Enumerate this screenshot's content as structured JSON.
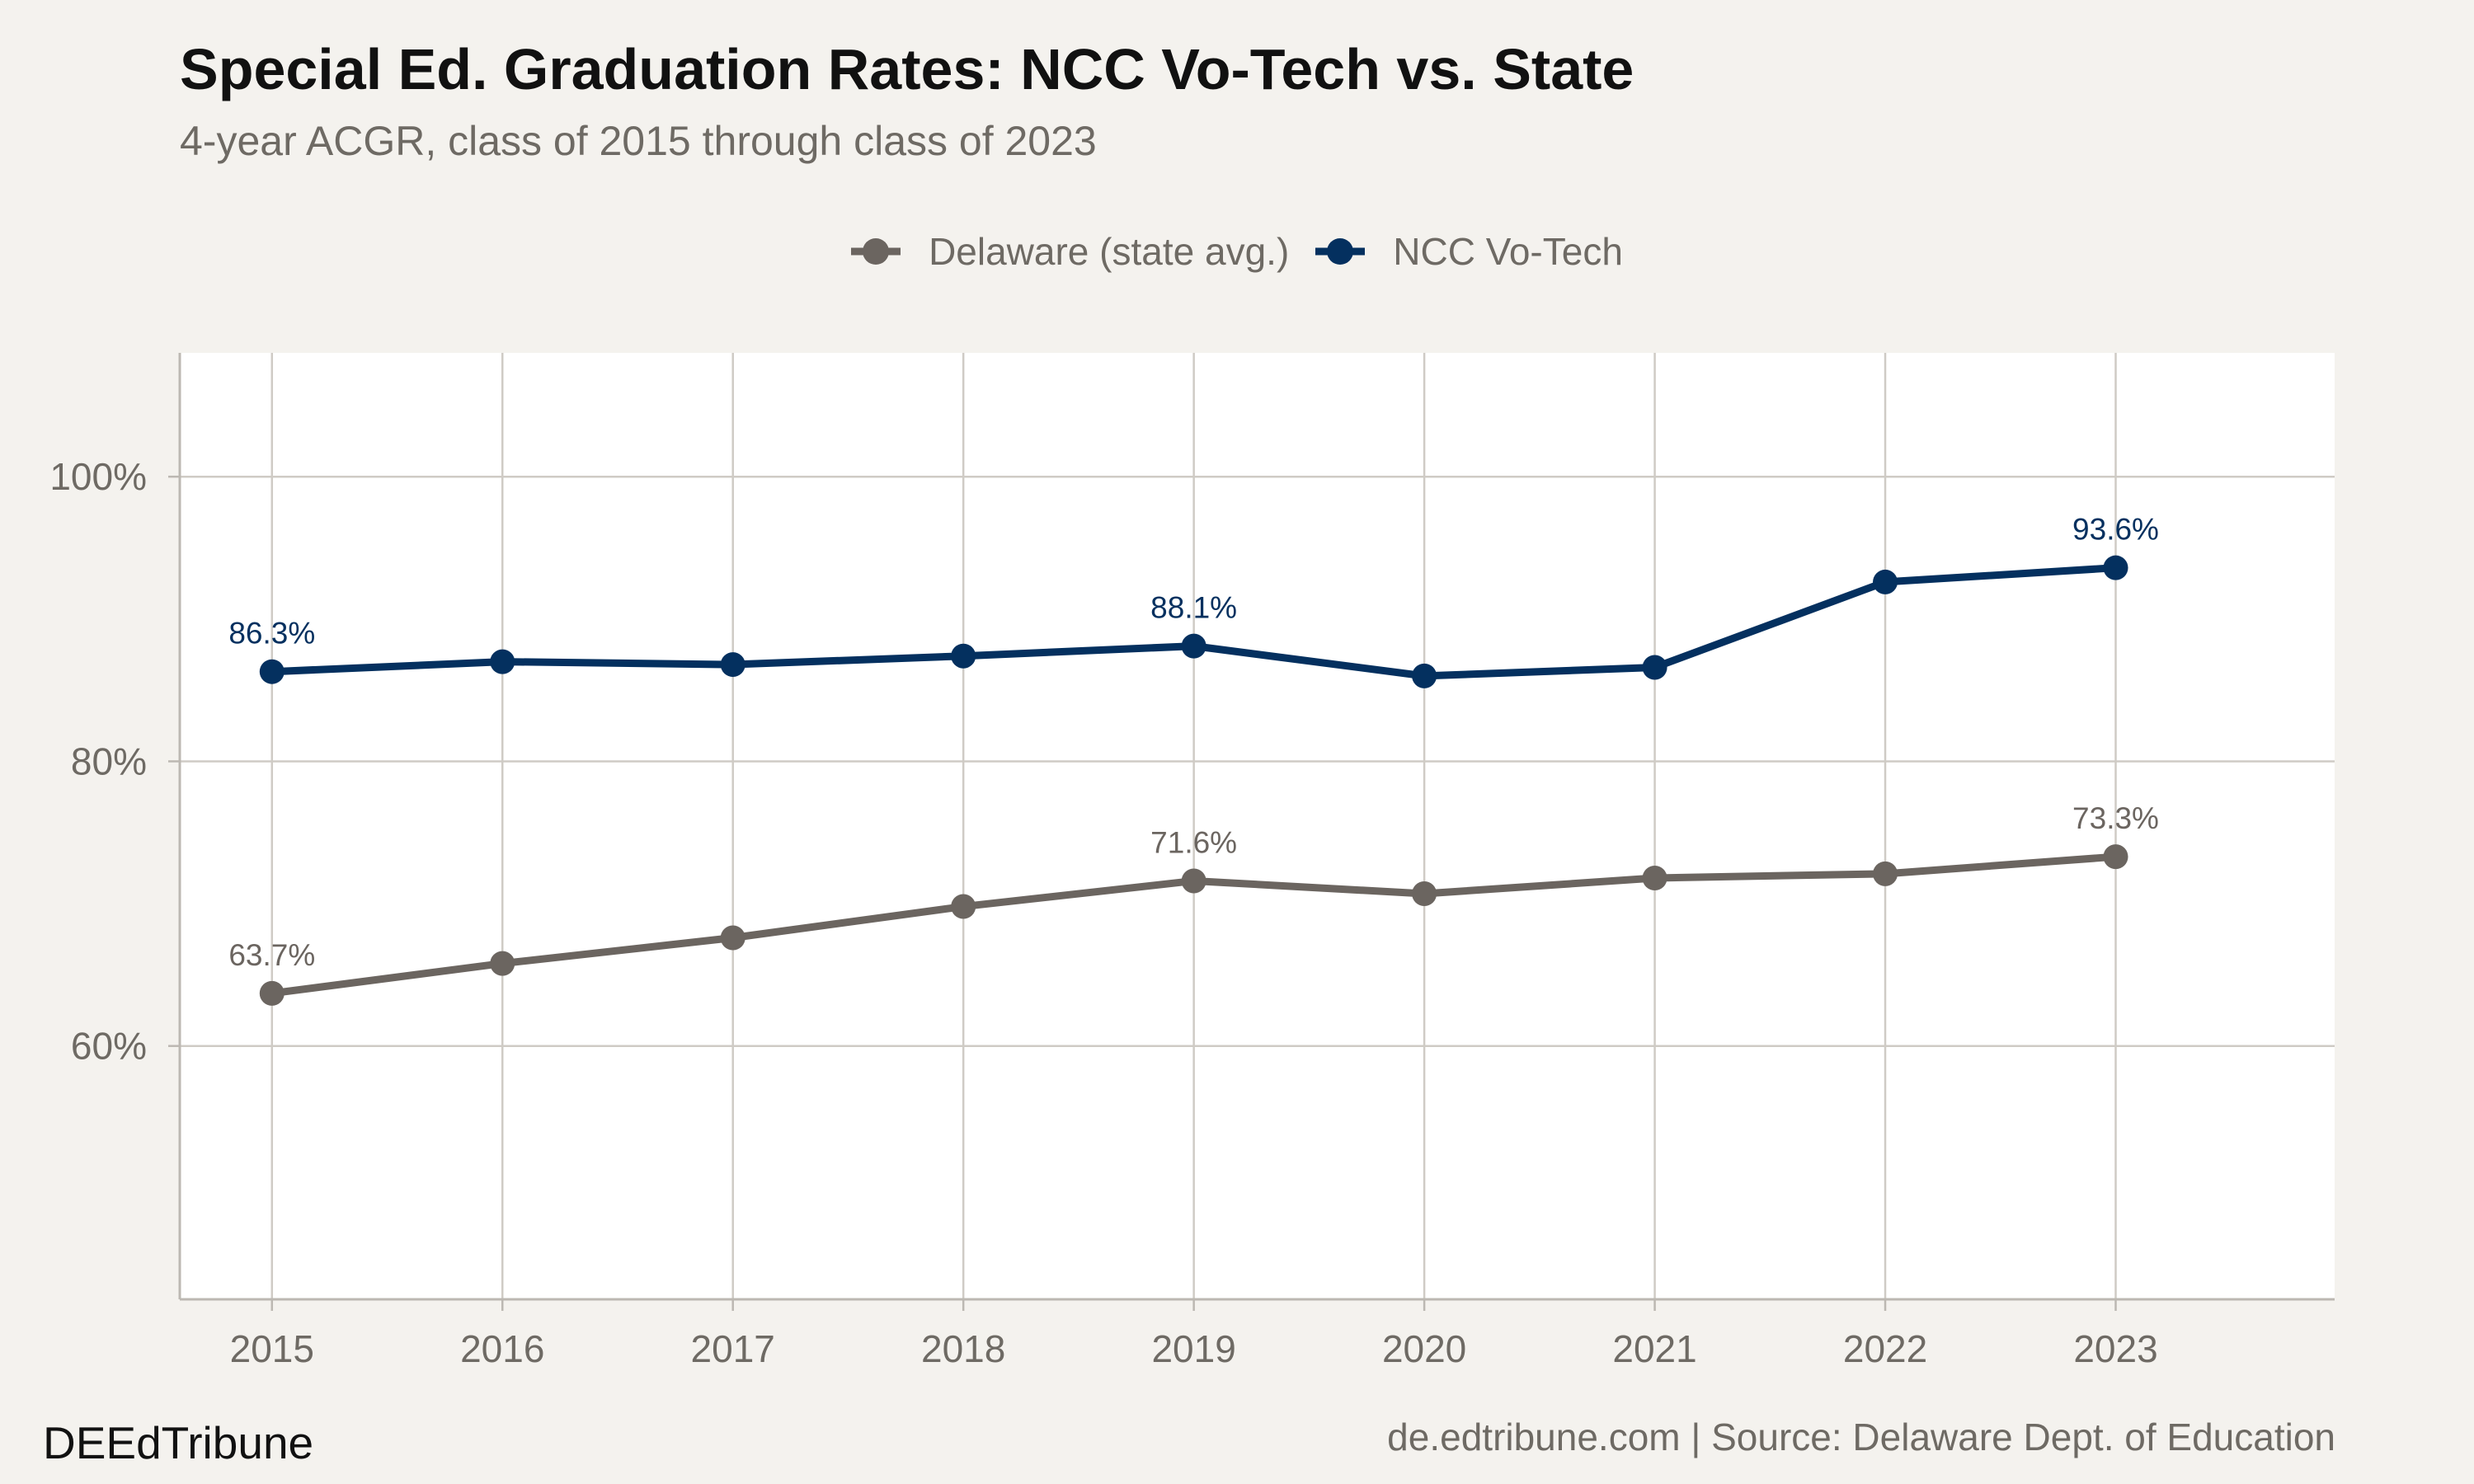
{
  "header": {
    "title": "Special Ed. Graduation Rates: NCC Vo-Tech vs. State",
    "subtitle": "4-year ACGR, class of 2015 through class of 2023"
  },
  "footer": {
    "brand": "DEEdTribune",
    "credit": "de.edtribune.com | Source: Delaware Dept. of Education"
  },
  "chart_data": {
    "type": "line",
    "title": "Special Ed. Graduation Rates: NCC Vo-Tech vs. State",
    "subtitle": "4-year ACGR, class of 2015 through class of 2023",
    "xlabel": "",
    "ylabel": "",
    "x": [
      2015,
      2016,
      2017,
      2018,
      2019,
      2020,
      2021,
      2022,
      2023
    ],
    "xlim": [
      2014.6,
      2023.95
    ],
    "ylim": [
      42.2,
      108.7
    ],
    "yticks": [
      60,
      80,
      100
    ],
    "ytick_labels": [
      "60%",
      "80%",
      "100%"
    ],
    "grid": true,
    "legend_position": "top",
    "series": [
      {
        "name": "Delaware (state avg.)",
        "color": "#6b6560",
        "values": [
          63.7,
          65.8,
          67.6,
          69.8,
          71.6,
          70.7,
          71.8,
          72.1,
          73.3
        ],
        "labels": [
          {
            "index": 0,
            "text": "63.7%"
          },
          {
            "index": 4,
            "text": "71.6%"
          },
          {
            "index": 8,
            "text": "73.3%"
          }
        ]
      },
      {
        "name": "NCC Vo-Tech",
        "color": "#04305f",
        "values": [
          86.3,
          87.0,
          86.8,
          87.4,
          88.1,
          86.0,
          86.6,
          92.6,
          93.6
        ],
        "labels": [
          {
            "index": 0,
            "text": "86.3%"
          },
          {
            "index": 4,
            "text": "88.1%"
          },
          {
            "index": 8,
            "text": "93.6%"
          }
        ]
      }
    ]
  }
}
